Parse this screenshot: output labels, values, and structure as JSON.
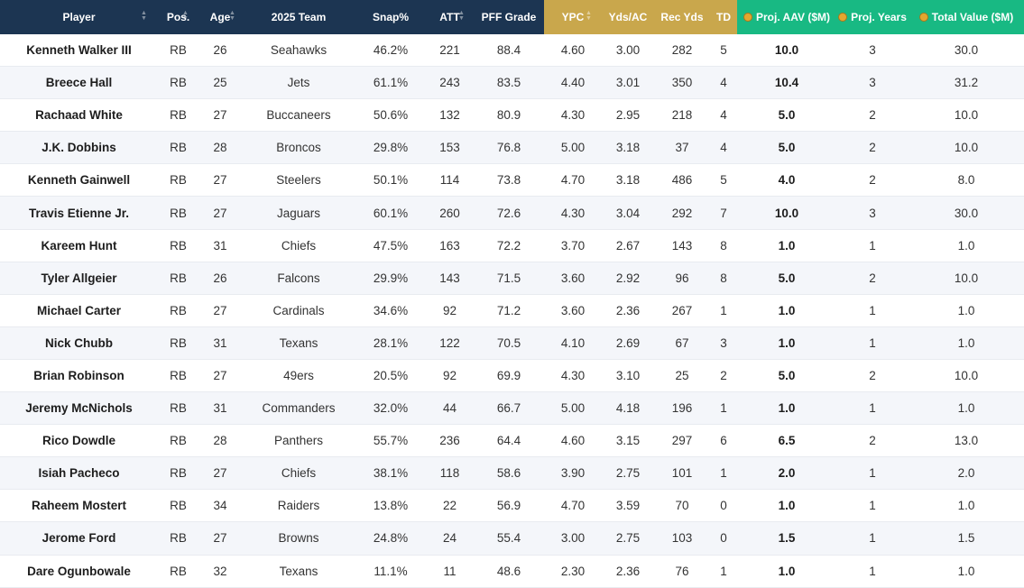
{
  "columns": [
    {
      "key": "player",
      "label": "Player",
      "money": false
    },
    {
      "key": "pos",
      "label": "Pos.",
      "money": false
    },
    {
      "key": "age",
      "label": "Age",
      "money": false
    },
    {
      "key": "team",
      "label": "2025 Team",
      "money": false
    },
    {
      "key": "snap",
      "label": "Snap%",
      "money": false
    },
    {
      "key": "att",
      "label": "ATT",
      "money": false
    },
    {
      "key": "pff",
      "label": "PFF Grade",
      "money": false
    },
    {
      "key": "ypc",
      "label": "YPC",
      "money": false
    },
    {
      "key": "ydsac",
      "label": "Yds/AC",
      "money": false
    },
    {
      "key": "recyds",
      "label": "Rec Yds",
      "money": false
    },
    {
      "key": "td",
      "label": "TD",
      "money": false
    },
    {
      "key": "aav",
      "label": "Proj. AAV ($M)",
      "money": true
    },
    {
      "key": "years",
      "label": "Proj. Years",
      "money": true
    },
    {
      "key": "total",
      "label": "Total Value ($M)",
      "money": true
    }
  ],
  "header_colors": {
    "navy": "#1c3552",
    "gold": "#c9a74c",
    "green": "#18b983"
  },
  "rows": [
    [
      "Kenneth Walker III",
      "RB",
      "26",
      "Seahawks",
      "46.2%",
      "221",
      "88.4",
      "4.60",
      "3.00",
      "282",
      "5",
      "10.0",
      "3",
      "30.0"
    ],
    [
      "Breece Hall",
      "RB",
      "25",
      "Jets",
      "61.1%",
      "243",
      "83.5",
      "4.40",
      "3.01",
      "350",
      "4",
      "10.4",
      "3",
      "31.2"
    ],
    [
      "Rachaad White",
      "RB",
      "27",
      "Buccaneers",
      "50.6%",
      "132",
      "80.9",
      "4.30",
      "2.95",
      "218",
      "4",
      "5.0",
      "2",
      "10.0"
    ],
    [
      "J.K. Dobbins",
      "RB",
      "28",
      "Broncos",
      "29.8%",
      "153",
      "76.8",
      "5.00",
      "3.18",
      "37",
      "4",
      "5.0",
      "2",
      "10.0"
    ],
    [
      "Kenneth Gainwell",
      "RB",
      "27",
      "Steelers",
      "50.1%",
      "114",
      "73.8",
      "4.70",
      "3.18",
      "486",
      "5",
      "4.0",
      "2",
      "8.0"
    ],
    [
      "Travis Etienne Jr.",
      "RB",
      "27",
      "Jaguars",
      "60.1%",
      "260",
      "72.6",
      "4.30",
      "3.04",
      "292",
      "7",
      "10.0",
      "3",
      "30.0"
    ],
    [
      "Kareem Hunt",
      "RB",
      "31",
      "Chiefs",
      "47.5%",
      "163",
      "72.2",
      "3.70",
      "2.67",
      "143",
      "8",
      "1.0",
      "1",
      "1.0"
    ],
    [
      "Tyler Allgeier",
      "RB",
      "26",
      "Falcons",
      "29.9%",
      "143",
      "71.5",
      "3.60",
      "2.92",
      "96",
      "8",
      "5.0",
      "2",
      "10.0"
    ],
    [
      "Michael Carter",
      "RB",
      "27",
      "Cardinals",
      "34.6%",
      "92",
      "71.2",
      "3.60",
      "2.36",
      "267",
      "1",
      "1.0",
      "1",
      "1.0"
    ],
    [
      "Nick Chubb",
      "RB",
      "31",
      "Texans",
      "28.1%",
      "122",
      "70.5",
      "4.10",
      "2.69",
      "67",
      "3",
      "1.0",
      "1",
      "1.0"
    ],
    [
      "Brian Robinson",
      "RB",
      "27",
      "49ers",
      "20.5%",
      "92",
      "69.9",
      "4.30",
      "3.10",
      "25",
      "2",
      "5.0",
      "2",
      "10.0"
    ],
    [
      "Jeremy McNichols",
      "RB",
      "31",
      "Commanders",
      "32.0%",
      "44",
      "66.7",
      "5.00",
      "4.18",
      "196",
      "1",
      "1.0",
      "1",
      "1.0"
    ],
    [
      "Rico Dowdle",
      "RB",
      "28",
      "Panthers",
      "55.7%",
      "236",
      "64.4",
      "4.60",
      "3.15",
      "297",
      "6",
      "6.5",
      "2",
      "13.0"
    ],
    [
      "Isiah Pacheco",
      "RB",
      "27",
      "Chiefs",
      "38.1%",
      "118",
      "58.6",
      "3.90",
      "2.75",
      "101",
      "1",
      "2.0",
      "1",
      "2.0"
    ],
    [
      "Raheem Mostert",
      "RB",
      "34",
      "Raiders",
      "13.8%",
      "22",
      "56.9",
      "4.70",
      "3.59",
      "70",
      "0",
      "1.0",
      "1",
      "1.0"
    ],
    [
      "Jerome Ford",
      "RB",
      "27",
      "Browns",
      "24.8%",
      "24",
      "55.4",
      "3.00",
      "2.75",
      "103",
      "0",
      "1.5",
      "1",
      "1.5"
    ],
    [
      "Dare Ogunbowale",
      "RB",
      "32",
      "Texans",
      "11.1%",
      "11",
      "48.6",
      "2.30",
      "2.36",
      "76",
      "1",
      "1.0",
      "1",
      "1.0"
    ]
  ]
}
